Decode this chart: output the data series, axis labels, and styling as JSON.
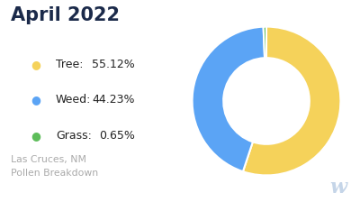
{
  "title": "April 2022",
  "subtitle": "Las Cruces, NM\nPollen Breakdown",
  "slices": [
    55.12,
    44.23,
    0.65
  ],
  "labels": [
    "Tree",
    "Weed",
    "Grass"
  ],
  "percentages": [
    "55.12%",
    "44.23%",
    "0.65%"
  ],
  "colors": [
    "#F5D25A",
    "#5BA4F5",
    "#5DBD5A"
  ],
  "background_color": "#ffffff",
  "title_color": "#1B2A4A",
  "legend_text_color": "#222222",
  "subtitle_color": "#aaaaaa",
  "start_angle": 90
}
